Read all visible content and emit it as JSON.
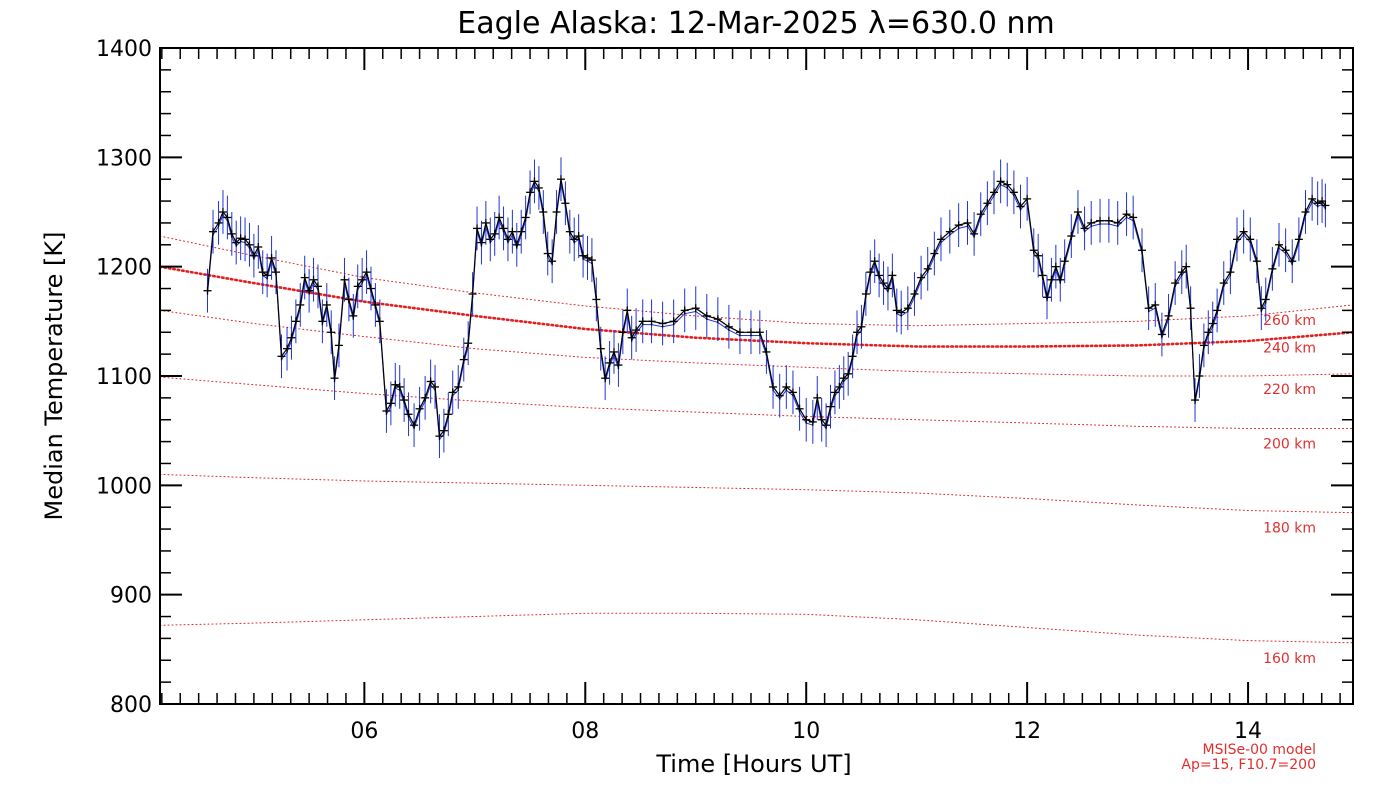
{
  "chart_data": {
    "type": "line",
    "title": "Eagle Alaska: 12-Mar-2025 λ=630.0 nm",
    "xlabel": "Time [Hours UT]",
    "ylabel": "Median Temperature [K]",
    "xlim": [
      4.15,
      14.95
    ],
    "ylim": [
      800,
      1400
    ],
    "x_ticks": [
      6,
      8,
      10,
      12,
      14
    ],
    "x_tick_labels": [
      "06",
      "08",
      "10",
      "12",
      "14"
    ],
    "y_ticks": [
      800,
      900,
      1000,
      1100,
      1200,
      1300,
      1400
    ],
    "y_tick_labels": [
      "800",
      "900",
      "1000",
      "1100",
      "1200",
      "1300",
      "1400"
    ],
    "colors": {
      "data_line": "#000000",
      "error_bars": "#1f33d8",
      "model": "#e02020",
      "axes": "#000000"
    },
    "series": [
      {
        "name": "Median Temperature",
        "error": 20,
        "points": [
          [
            4.58,
            1178
          ],
          [
            4.63,
            1232
          ],
          [
            4.68,
            1240
          ],
          [
            4.72,
            1250
          ],
          [
            4.76,
            1245
          ],
          [
            4.8,
            1230
          ],
          [
            4.84,
            1222
          ],
          [
            4.88,
            1226
          ],
          [
            4.92,
            1225
          ],
          [
            4.96,
            1220
          ],
          [
            5.0,
            1210
          ],
          [
            5.04,
            1218
          ],
          [
            5.08,
            1195
          ],
          [
            5.12,
            1192
          ],
          [
            5.16,
            1208
          ],
          [
            5.2,
            1195
          ],
          [
            5.25,
            1118
          ],
          [
            5.3,
            1125
          ],
          [
            5.34,
            1135
          ],
          [
            5.38,
            1150
          ],
          [
            5.42,
            1165
          ],
          [
            5.46,
            1190
          ],
          [
            5.5,
            1178
          ],
          [
            5.54,
            1188
          ],
          [
            5.58,
            1182
          ],
          [
            5.62,
            1150
          ],
          [
            5.66,
            1165
          ],
          [
            5.7,
            1140
          ],
          [
            5.73,
            1098
          ],
          [
            5.77,
            1128
          ],
          [
            5.82,
            1188
          ],
          [
            5.86,
            1170
          ],
          [
            5.9,
            1155
          ],
          [
            5.94,
            1182
          ],
          [
            5.98,
            1188
          ],
          [
            6.02,
            1195
          ],
          [
            6.06,
            1180
          ],
          [
            6.1,
            1165
          ],
          [
            6.14,
            1150
          ],
          [
            6.2,
            1068
          ],
          [
            6.24,
            1075
          ],
          [
            6.28,
            1092
          ],
          [
            6.32,
            1090
          ],
          [
            6.36,
            1078
          ],
          [
            6.4,
            1065
          ],
          [
            6.45,
            1055
          ],
          [
            6.5,
            1070
          ],
          [
            6.55,
            1080
          ],
          [
            6.6,
            1095
          ],
          [
            6.64,
            1090
          ],
          [
            6.68,
            1045
          ],
          [
            6.72,
            1050
          ],
          [
            6.76,
            1065
          ],
          [
            6.8,
            1085
          ],
          [
            6.85,
            1090
          ],
          [
            6.9,
            1115
          ],
          [
            6.94,
            1130
          ],
          [
            6.98,
            1175
          ],
          [
            7.02,
            1235
          ],
          [
            7.06,
            1222
          ],
          [
            7.1,
            1240
          ],
          [
            7.14,
            1225
          ],
          [
            7.18,
            1230
          ],
          [
            7.22,
            1245
          ],
          [
            7.26,
            1235
          ],
          [
            7.3,
            1225
          ],
          [
            7.34,
            1232
          ],
          [
            7.38,
            1220
          ],
          [
            7.42,
            1232
          ],
          [
            7.46,
            1245
          ],
          [
            7.5,
            1268
          ],
          [
            7.54,
            1278
          ],
          [
            7.58,
            1272
          ],
          [
            7.62,
            1250
          ],
          [
            7.66,
            1212
          ],
          [
            7.7,
            1205
          ],
          [
            7.74,
            1250
          ],
          [
            7.78,
            1280
          ],
          [
            7.82,
            1258
          ],
          [
            7.86,
            1232
          ],
          [
            7.9,
            1225
          ],
          [
            7.94,
            1228
          ],
          [
            7.98,
            1210
          ],
          [
            8.02,
            1208
          ],
          [
            8.06,
            1206
          ],
          [
            8.1,
            1170
          ],
          [
            8.14,
            1125
          ],
          [
            8.18,
            1098
          ],
          [
            8.22,
            1112
          ],
          [
            8.26,
            1122
          ],
          [
            8.3,
            1110
          ],
          [
            8.34,
            1140
          ],
          [
            8.38,
            1160
          ],
          [
            8.42,
            1135
          ],
          [
            8.46,
            1142
          ],
          [
            8.52,
            1150
          ],
          [
            8.6,
            1150
          ],
          [
            8.7,
            1148
          ],
          [
            8.8,
            1150
          ],
          [
            8.9,
            1160
          ],
          [
            9.0,
            1162
          ],
          [
            9.1,
            1155
          ],
          [
            9.2,
            1152
          ],
          [
            9.3,
            1145
          ],
          [
            9.4,
            1140
          ],
          [
            9.5,
            1140
          ],
          [
            9.58,
            1140
          ],
          [
            9.64,
            1122
          ],
          [
            9.7,
            1090
          ],
          [
            9.76,
            1082
          ],
          [
            9.82,
            1090
          ],
          [
            9.88,
            1085
          ],
          [
            9.94,
            1070
          ],
          [
            10.0,
            1060
          ],
          [
            10.06,
            1058
          ],
          [
            10.1,
            1080
          ],
          [
            10.14,
            1060
          ],
          [
            10.18,
            1055
          ],
          [
            10.22,
            1072
          ],
          [
            10.26,
            1085
          ],
          [
            10.3,
            1090
          ],
          [
            10.34,
            1098
          ],
          [
            10.38,
            1102
          ],
          [
            10.42,
            1118
          ],
          [
            10.46,
            1140
          ],
          [
            10.5,
            1145
          ],
          [
            10.54,
            1175
          ],
          [
            10.58,
            1195
          ],
          [
            10.62,
            1205
          ],
          [
            10.66,
            1192
          ],
          [
            10.7,
            1185
          ],
          [
            10.74,
            1180
          ],
          [
            10.78,
            1192
          ],
          [
            10.82,
            1160
          ],
          [
            10.86,
            1158
          ],
          [
            10.92,
            1162
          ],
          [
            10.98,
            1175
          ],
          [
            11.04,
            1190
          ],
          [
            11.1,
            1198
          ],
          [
            11.16,
            1212
          ],
          [
            11.22,
            1225
          ],
          [
            11.3,
            1232
          ],
          [
            11.38,
            1238
          ],
          [
            11.46,
            1240
          ],
          [
            11.52,
            1230
          ],
          [
            11.58,
            1248
          ],
          [
            11.64,
            1258
          ],
          [
            11.7,
            1268
          ],
          [
            11.76,
            1278
          ],
          [
            11.82,
            1275
          ],
          [
            11.88,
            1268
          ],
          [
            11.94,
            1255
          ],
          [
            12.0,
            1262
          ],
          [
            12.06,
            1215
          ],
          [
            12.1,
            1210
          ],
          [
            12.14,
            1192
          ],
          [
            12.18,
            1172
          ],
          [
            12.22,
            1188
          ],
          [
            12.26,
            1200
          ],
          [
            12.3,
            1188
          ],
          [
            12.34,
            1205
          ],
          [
            12.4,
            1228
          ],
          [
            12.46,
            1250
          ],
          [
            12.52,
            1235
          ],
          [
            12.58,
            1240
          ],
          [
            12.66,
            1242
          ],
          [
            12.74,
            1242
          ],
          [
            12.82,
            1240
          ],
          [
            12.9,
            1248
          ],
          [
            12.96,
            1245
          ],
          [
            13.04,
            1215
          ],
          [
            13.1,
            1162
          ],
          [
            13.16,
            1165
          ],
          [
            13.22,
            1138
          ],
          [
            13.28,
            1155
          ],
          [
            13.34,
            1185
          ],
          [
            13.4,
            1195
          ],
          [
            13.44,
            1200
          ],
          [
            13.48,
            1162
          ],
          [
            13.52,
            1078
          ],
          [
            13.56,
            1100
          ],
          [
            13.6,
            1128
          ],
          [
            13.64,
            1140
          ],
          [
            13.68,
            1148
          ],
          [
            13.72,
            1160
          ],
          [
            13.78,
            1185
          ],
          [
            13.84,
            1195
          ],
          [
            13.9,
            1225
          ],
          [
            13.96,
            1232
          ],
          [
            14.02,
            1225
          ],
          [
            14.08,
            1205
          ],
          [
            14.12,
            1162
          ],
          [
            14.16,
            1170
          ],
          [
            14.22,
            1198
          ],
          [
            14.28,
            1220
          ],
          [
            14.34,
            1215
          ],
          [
            14.4,
            1205
          ],
          [
            14.46,
            1225
          ],
          [
            14.52,
            1250
          ],
          [
            14.58,
            1262
          ],
          [
            14.63,
            1258
          ],
          [
            14.67,
            1260
          ],
          [
            14.7,
            1256
          ]
        ]
      }
    ],
    "model_curves": [
      {
        "name": "260 km",
        "label": "260 km",
        "x": [
          4.15,
          5,
          6,
          7,
          8,
          9,
          10,
          11,
          12,
          13,
          14,
          14.95
        ],
        "y": [
          1228,
          1210,
          1190,
          1176,
          1164,
          1155,
          1148,
          1146,
          1148,
          1150,
          1155,
          1165
        ]
      },
      {
        "name": "240 km",
        "label": "240 km",
        "x": [
          4.15,
          5,
          6,
          7,
          8,
          9,
          10,
          11,
          12,
          13,
          14,
          14.95
        ],
        "y": [
          1200,
          1185,
          1168,
          1155,
          1143,
          1135,
          1130,
          1127,
          1127,
          1128,
          1132,
          1140
        ],
        "bold": true
      },
      {
        "name": "220 km",
        "label": "220 km",
        "x": [
          4.15,
          5,
          6,
          7,
          8,
          9,
          10,
          11,
          12,
          13,
          14,
          14.95
        ],
        "y": [
          1160,
          1148,
          1136,
          1125,
          1117,
          1112,
          1108,
          1104,
          1102,
          1100,
          1100,
          1102
        ]
      },
      {
        "name": "200 km",
        "label": "200 km",
        "x": [
          4.15,
          5,
          6,
          7,
          8,
          9,
          10,
          11,
          12,
          13,
          14,
          14.95
        ],
        "y": [
          1099,
          1092,
          1084,
          1077,
          1071,
          1067,
          1063,
          1060,
          1057,
          1054,
          1052,
          1052
        ]
      },
      {
        "name": "180 km",
        "label": "180 km",
        "x": [
          4.15,
          5,
          6,
          7,
          8,
          9,
          10,
          11,
          12,
          13,
          14,
          14.95
        ],
        "y": [
          1010,
          1007,
          1004,
          1002,
          1000,
          998,
          996,
          993,
          988,
          982,
          977,
          975
        ]
      },
      {
        "name": "160 km",
        "label": "160 km",
        "x": [
          4.15,
          5,
          6,
          7,
          8,
          9,
          10,
          11,
          12,
          13,
          14,
          14.95
        ],
        "y": [
          872,
          874,
          877,
          880,
          883,
          883,
          882,
          877,
          870,
          863,
          858,
          856
        ]
      }
    ],
    "annotations": [
      "MSISe-00 model",
      "Ap=15, F10.7=200"
    ]
  }
}
